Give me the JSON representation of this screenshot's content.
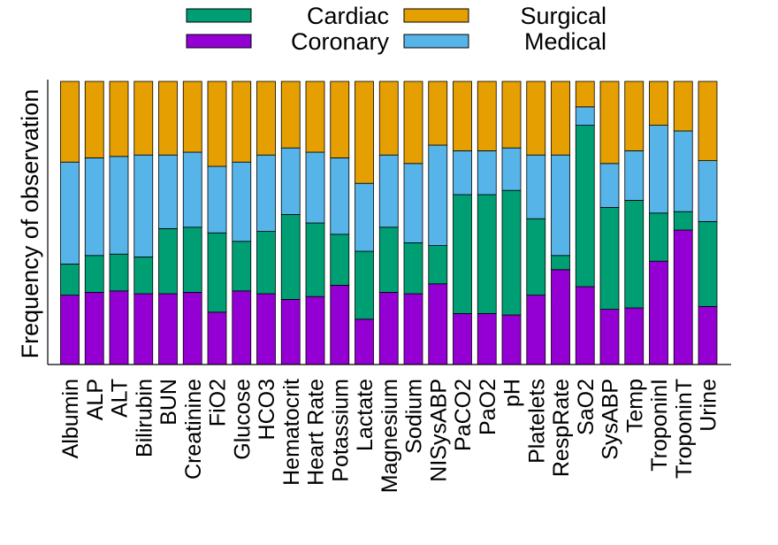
{
  "chart_data": {
    "type": "bar",
    "stacked": true,
    "normalized": true,
    "title": "",
    "xlabel": "",
    "ylabel": "Frequency of observation",
    "ylim": [
      0,
      1
    ],
    "y_tick_labels_shown": false,
    "grid": false,
    "legend_position": "top",
    "categories": [
      "Albumin",
      "ALP",
      "ALT",
      "Bilirubin",
      "BUN",
      "Creatinine",
      "FiO2",
      "Glucose",
      "HCO3",
      "Hematocrit",
      "Heart Rate",
      "Potassium",
      "Lactate",
      "Magnesium",
      "Sodium",
      "NISysABP",
      "PaCO2",
      "PaO2",
      "pH",
      "Platelets",
      "RespRate",
      "SaO2",
      "SysABP",
      "Temp",
      "TroponinI",
      "TroponinT",
      "Urine"
    ],
    "series": [
      {
        "name": "Coronary",
        "color": "#9400d3",
        "values": [
          0.245,
          0.255,
          0.26,
          0.25,
          0.25,
          0.255,
          0.185,
          0.26,
          0.25,
          0.23,
          0.24,
          0.28,
          0.16,
          0.255,
          0.25,
          0.285,
          0.18,
          0.18,
          0.175,
          0.245,
          0.335,
          0.275,
          0.195,
          0.2,
          0.365,
          0.475,
          0.205
        ]
      },
      {
        "name": "Cardiac",
        "color": "#009e73",
        "values": [
          0.11,
          0.13,
          0.13,
          0.13,
          0.23,
          0.23,
          0.28,
          0.175,
          0.22,
          0.3,
          0.26,
          0.18,
          0.24,
          0.23,
          0.18,
          0.135,
          0.42,
          0.42,
          0.44,
          0.27,
          0.05,
          0.57,
          0.36,
          0.38,
          0.17,
          0.065,
          0.3
        ]
      },
      {
        "name": "Medical",
        "color": "#56b4e9",
        "values": [
          0.36,
          0.345,
          0.345,
          0.36,
          0.26,
          0.265,
          0.235,
          0.28,
          0.27,
          0.235,
          0.25,
          0.27,
          0.24,
          0.255,
          0.28,
          0.355,
          0.155,
          0.155,
          0.15,
          0.225,
          0.355,
          0.065,
          0.155,
          0.175,
          0.31,
          0.285,
          0.215
        ]
      },
      {
        "name": "Surgical",
        "color": "#e69f00",
        "values": [
          0.285,
          0.27,
          0.265,
          0.26,
          0.26,
          0.25,
          0.3,
          0.285,
          0.26,
          0.235,
          0.25,
          0.27,
          0.36,
          0.26,
          0.29,
          0.225,
          0.245,
          0.245,
          0.235,
          0.26,
          0.26,
          0.09,
          0.29,
          0.245,
          0.155,
          0.175,
          0.28
        ]
      }
    ],
    "legend": [
      {
        "name": "Cardiac",
        "color": "#009e73"
      },
      {
        "name": "Surgical",
        "color": "#e69f00"
      },
      {
        "name": "Coronary",
        "color": "#9400d3"
      },
      {
        "name": "Medical",
        "color": "#56b4e9"
      }
    ]
  }
}
